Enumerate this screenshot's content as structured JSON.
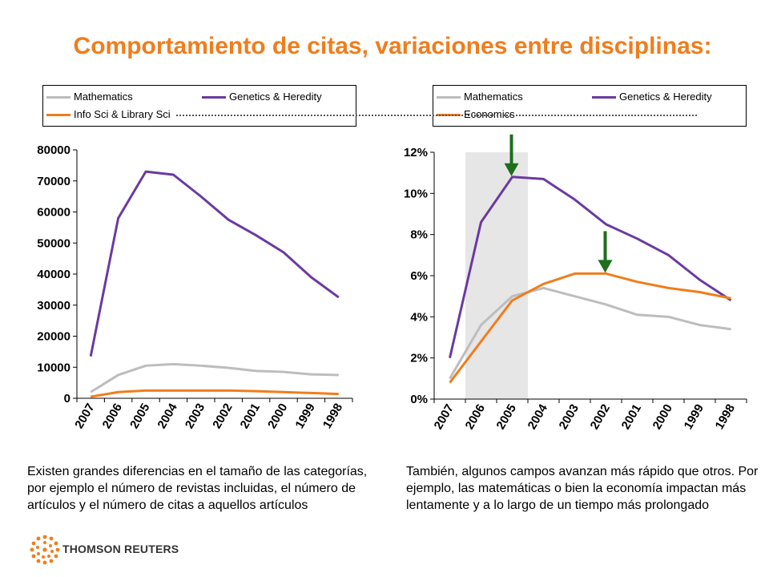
{
  "title": "Comportamiento de citas, variaciones entre disciplinas:",
  "colors": {
    "title": "#f07d1c",
    "mathematics": "#bdbdbd",
    "genetics": "#6a3aa0",
    "orange_series": "#f07d1c",
    "arrow": "#1e6e1e",
    "shade": "#e6e6e6"
  },
  "captions": {
    "left": "Existen grandes diferencias en el tamaño de las categorías, por ejemplo el número de revistas incluidas, el número de artículos y el número de citas a aquellos artículos",
    "right": "También, algunos campos avanzan más rápido que otros. Por ejemplo, las matemáticas o bien la economía impactan más lentamente y a lo largo de un tiempo más prolongado"
  },
  "logo": {
    "text": "THOMSON REUTERS"
  },
  "chart_data": [
    {
      "type": "line",
      "categories": [
        "2007",
        "2006",
        "2005",
        "2004",
        "2003",
        "2002",
        "2001",
        "2000",
        "1999",
        "1998"
      ],
      "ylim": [
        0,
        80000
      ],
      "yticks": [
        "0",
        "10000",
        "20000",
        "30000",
        "40000",
        "50000",
        "60000",
        "70000",
        "80000"
      ],
      "legend": "top",
      "series": [
        {
          "name": "Mathematics",
          "values": [
            2000,
            7500,
            10500,
            11000,
            10500,
            9800,
            8800,
            8500,
            7700,
            7500
          ]
        },
        {
          "name": "Genetics & Heredity",
          "values": [
            13500,
            58000,
            73000,
            72000,
            65000,
            57500,
            52500,
            47000,
            39000,
            32500
          ]
        },
        {
          "name": "Info Sci & Library Sci",
          "values": [
            500,
            2000,
            2500,
            2500,
            2500,
            2500,
            2300,
            2000,
            1700,
            1400
          ]
        }
      ]
    },
    {
      "type": "line",
      "categories": [
        "2007",
        "2006",
        "2005",
        "2004",
        "2003",
        "2002",
        "2001",
        "2000",
        "1999",
        "1998"
      ],
      "ylim": [
        0,
        12
      ],
      "yticks": [
        "0%",
        "2%",
        "4%",
        "6%",
        "8%",
        "10%",
        "12%"
      ],
      "legend": "top",
      "shaded_range": [
        "2006",
        "2005"
      ],
      "series": [
        {
          "name": "Mathematics",
          "values": [
            1.0,
            3.6,
            5.0,
            5.4,
            5.0,
            4.6,
            4.1,
            4.0,
            3.6,
            3.4
          ]
        },
        {
          "name": "Genetics & Heredity",
          "values": [
            2.0,
            8.6,
            10.8,
            10.7,
            9.7,
            8.5,
            7.8,
            7.0,
            5.8,
            4.8
          ]
        },
        {
          "name": "Economics",
          "values": [
            0.8,
            2.8,
            4.8,
            5.6,
            6.1,
            6.1,
            5.7,
            5.4,
            5.2,
            4.9
          ]
        }
      ],
      "arrows": [
        {
          "series": "Genetics & Heredity",
          "category": "2005"
        },
        {
          "series": "Economics",
          "category": "2002"
        }
      ]
    }
  ]
}
